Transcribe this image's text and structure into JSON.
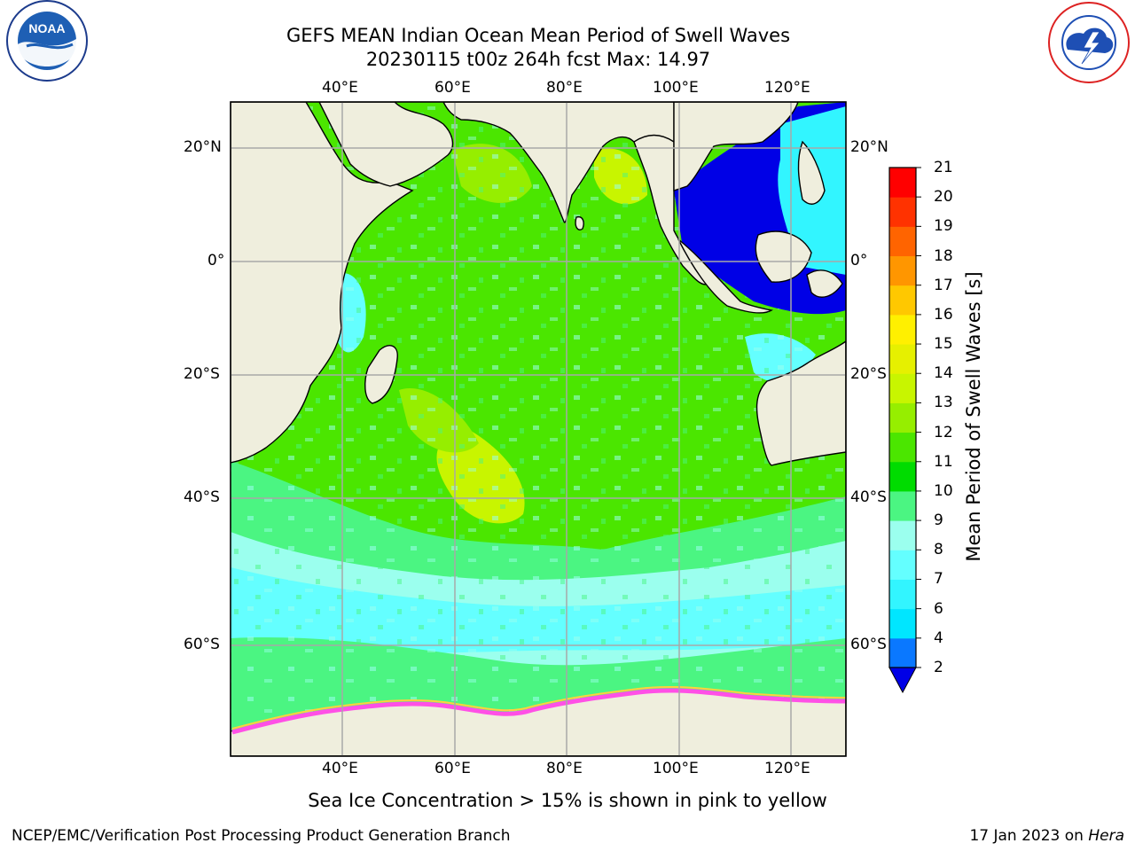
{
  "header": {
    "title_line1": "GEFS MEAN Indian Ocean Mean Period of Swell Waves",
    "title_line2": "20230115 t00z 264h fcst   Max: 14.97"
  },
  "logos": {
    "noaa": {
      "text": "NOAA",
      "ring_text": "NATIONAL OCEANIC AND ATMOSPHERIC ADMINISTRATION · U.S. DEPARTMENT OF COMMERCE"
    },
    "nws": {
      "ring_text": "NATIONAL WEATHER SERVICE"
    }
  },
  "map": {
    "lon_ticks": [
      "40°E",
      "60°E",
      "80°E",
      "100°E",
      "120°E"
    ],
    "lat_ticks_left": [
      "20°N",
      "0°",
      "20°S",
      "40°S",
      "60°S"
    ],
    "lat_ticks_right": [
      "20°N",
      "0°",
      "20°S",
      "40°S",
      "60°S"
    ],
    "extent": {
      "lon_min": 20,
      "lon_max": 129,
      "lat_min": -71,
      "lat_max": 28
    },
    "land_color": "#efeedd",
    "grid_color": "#a8a8a8"
  },
  "colorbar": {
    "title": "Mean Period of Swell Waves [s]",
    "levels": [
      "2",
      "4",
      "6",
      "7",
      "8",
      "9",
      "10",
      "11",
      "12",
      "13",
      "14",
      "15",
      "16",
      "17",
      "18",
      "19",
      "20",
      "21"
    ],
    "colors": [
      "#0000e6",
      "#0a78ff",
      "#00e6ff",
      "#32f5ff",
      "#64ffff",
      "#9bffee",
      "#4bf582",
      "#00dc00",
      "#4be600",
      "#96ee00",
      "#c8f500",
      "#e6f000",
      "#fff000",
      "#ffc800",
      "#ff9600",
      "#ff6400",
      "#ff3200",
      "#ff0000"
    ]
  },
  "footer": {
    "note": "Sea Ice Concentration > 15% is shown in pink to yellow",
    "left": "NCEP/EMC/Verification Post Processing Product Generation Branch",
    "date": "17 Jan 2023 on",
    "host": "Hera"
  }
}
